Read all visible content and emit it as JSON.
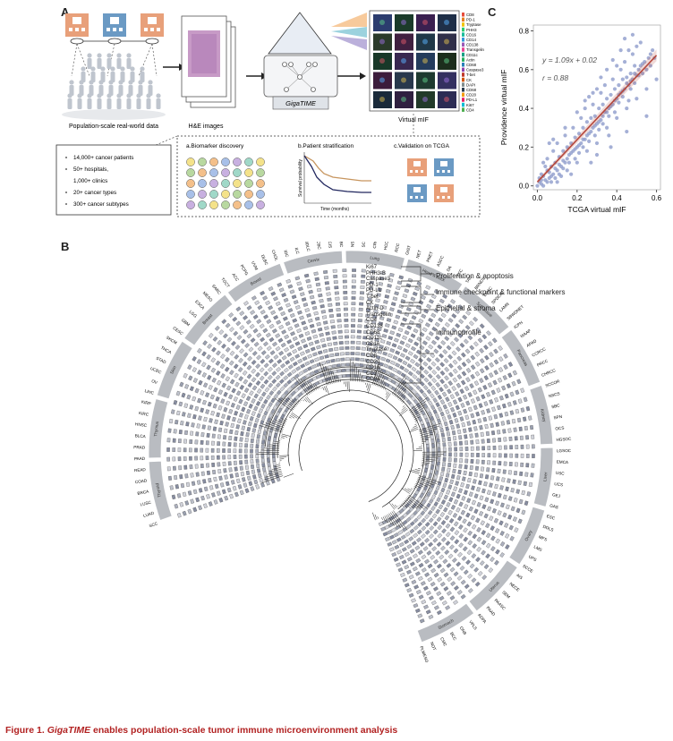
{
  "panels": {
    "a": "A",
    "b": "B",
    "c": "C"
  },
  "panel_a": {
    "population_label": "Population-scale real-world data",
    "he_label": "H&E images",
    "model_label": "GigaTIME",
    "mif_label": "Virtual mIF",
    "markers": [
      "CD8",
      "PD-1",
      "Tryptase",
      "PHH3",
      "CD16",
      "CD14",
      "CD138",
      "Transgelin",
      "CD11c",
      "Actin",
      "CD68",
      "Caspase3",
      "T-bet",
      "CK",
      "DAPI",
      "CD68",
      "CD20",
      "PD-L1",
      "Ki67",
      "CD4"
    ],
    "stats": [
      "14,000+ cancer patients",
      "50+ hospitals,",
      "1,000+ clinics",
      "20+ cancer types",
      "300+ cancer subtypes"
    ],
    "sub_a": "a.Biomarker discovery",
    "sub_b": "b.Patient stratification",
    "sub_c": "c.Validation on TCGA",
    "km_ylabel": "Survival probability",
    "km_xlabel": "Time (months)"
  },
  "panel_b": {
    "groups": [
      "Proliferation & apoptosis",
      "Immune checkpoint & functional markers",
      "Epithelial & stroma",
      "Immunoprofile"
    ],
    "markers": [
      "Ki67",
      "PHH3-B",
      "Caspase3",
      "PD-1",
      "PD-L1",
      "T-bet",
      "CK",
      "Actin-D",
      "Transgolin",
      "CD4",
      "CD138",
      "CD68",
      "CD11c",
      "CD16",
      "Tryptase",
      "CD8",
      "CD20",
      "CD16",
      "CD3",
      "CD34"
    ],
    "tissue_segments": [
      "Thyroid",
      "Thymus",
      "Skin",
      "Breast",
      "Bowel",
      "Cervix",
      "Lung",
      "Head & neck",
      "Soft tissue",
      "Pancreas",
      "Kidney",
      "Liver",
      "Ovary",
      "Uterus",
      "Stomach"
    ],
    "subtypes": [
      "SCC",
      "LUAD",
      "LUSC",
      "BRCA",
      "COAD",
      "READ",
      "PAAD",
      "PRAD",
      "BLCA",
      "HNSC",
      "KIRC",
      "KIRP",
      "LIHC",
      "OV",
      "UCEC",
      "STAD",
      "THCA",
      "SKCM",
      "CESC",
      "GBM",
      "LGG",
      "ESCA",
      "MESO",
      "SARC",
      "TGCT",
      "ACC",
      "PCPG",
      "UVM",
      "DLBC",
      "CHOL",
      "IDC",
      "ILC",
      "MDLC",
      "ACBC",
      "LCIS",
      "MBC",
      "NSCLC",
      "SCLC",
      "CRC",
      "HCC",
      "RCC",
      "GIST",
      "NET",
      "PNET",
      "ASCC",
      "DA",
      "SKC",
      "TAC",
      "BRNDS",
      "EHAC",
      "SPDCR",
      "LAMN",
      "SBWDNET",
      "ICPN",
      "MAAP",
      "APAD",
      "CCRCC",
      "PRCC",
      "CHRCC",
      "SCCOR",
      "NSCS",
      "SBC",
      "SPN",
      "OCS",
      "HGSOC",
      "LGSOC",
      "EMCA",
      "USC",
      "UCS",
      "GEJ",
      "GAS",
      "ESC",
      "DDLS",
      "MFS",
      "LMS",
      "UPS",
      "SCCE",
      "AIS",
      "NECE",
      "SEM",
      "PAASC",
      "PAAD",
      "ADPA",
      "VPLS",
      "ONB",
      "BCC",
      "CMC",
      "NOT",
      "PLMESO"
    ]
  },
  "chart_data": {
    "type": "scatter",
    "xlabel": "TCGA virtual mIF",
    "ylabel": "Providence virtual mIF",
    "xlim": [
      -0.02,
      0.62
    ],
    "ylim": [
      -0.02,
      0.83
    ],
    "xticks": [
      0.0,
      0.2,
      0.4,
      0.6
    ],
    "yticks": [
      0.0,
      0.2,
      0.4,
      0.6,
      0.8
    ],
    "annotation_eq": "y = 1.09x + 0.02",
    "annotation_r": "r = 0.88",
    "fit": {
      "slope": 1.09,
      "intercept": 0.02
    },
    "point_color": "#8f9ccc",
    "line_color": "#b5483c",
    "points": [
      [
        0.01,
        0.02
      ],
      [
        0.02,
        0.01
      ],
      [
        0.03,
        0.05
      ],
      [
        0.04,
        0.03
      ],
      [
        0.05,
        0.08
      ],
      [
        0.06,
        0.04
      ],
      [
        0.07,
        0.1
      ],
      [
        0.08,
        0.06
      ],
      [
        0.09,
        0.12
      ],
      [
        0.1,
        0.08
      ],
      [
        0.11,
        0.15
      ],
      [
        0.12,
        0.1
      ],
      [
        0.13,
        0.18
      ],
      [
        0.14,
        0.12
      ],
      [
        0.15,
        0.2
      ],
      [
        0.16,
        0.16
      ],
      [
        0.17,
        0.22
      ],
      [
        0.18,
        0.18
      ],
      [
        0.19,
        0.25
      ],
      [
        0.2,
        0.2
      ],
      [
        0.21,
        0.27
      ],
      [
        0.22,
        0.22
      ],
      [
        0.23,
        0.3
      ],
      [
        0.24,
        0.24
      ],
      [
        0.25,
        0.33
      ],
      [
        0.26,
        0.27
      ],
      [
        0.27,
        0.35
      ],
      [
        0.28,
        0.3
      ],
      [
        0.29,
        0.36
      ],
      [
        0.3,
        0.32
      ],
      [
        0.31,
        0.4
      ],
      [
        0.32,
        0.34
      ],
      [
        0.33,
        0.42
      ],
      [
        0.34,
        0.38
      ],
      [
        0.35,
        0.45
      ],
      [
        0.36,
        0.4
      ],
      [
        0.37,
        0.47
      ],
      [
        0.38,
        0.42
      ],
      [
        0.39,
        0.5
      ],
      [
        0.4,
        0.45
      ],
      [
        0.41,
        0.52
      ],
      [
        0.42,
        0.48
      ],
      [
        0.43,
        0.55
      ],
      [
        0.44,
        0.5
      ],
      [
        0.45,
        0.56
      ],
      [
        0.46,
        0.52
      ],
      [
        0.47,
        0.58
      ],
      [
        0.48,
        0.55
      ],
      [
        0.49,
        0.62
      ],
      [
        0.5,
        0.57
      ],
      [
        0.52,
        0.62
      ],
      [
        0.54,
        0.64
      ],
      [
        0.56,
        0.66
      ],
      [
        0.58,
        0.7
      ],
      [
        0.05,
        0.14
      ],
      [
        0.08,
        0.18
      ],
      [
        0.1,
        0.22
      ],
      [
        0.12,
        0.05
      ],
      [
        0.15,
        0.08
      ],
      [
        0.18,
        0.3
      ],
      [
        0.2,
        0.12
      ],
      [
        0.22,
        0.35
      ],
      [
        0.25,
        0.18
      ],
      [
        0.28,
        0.42
      ],
      [
        0.3,
        0.22
      ],
      [
        0.32,
        0.48
      ],
      [
        0.35,
        0.3
      ],
      [
        0.38,
        0.55
      ],
      [
        0.4,
        0.35
      ],
      [
        0.42,
        0.6
      ],
      [
        0.45,
        0.4
      ],
      [
        0.48,
        0.68
      ],
      [
        0.5,
        0.45
      ],
      [
        0.52,
        0.74
      ],
      [
        0.55,
        0.5
      ],
      [
        0.06,
        0.22
      ],
      [
        0.14,
        0.26
      ],
      [
        0.24,
        0.4
      ],
      [
        0.34,
        0.52
      ],
      [
        0.44,
        0.64
      ],
      [
        0.3,
        0.16
      ],
      [
        0.36,
        0.26
      ],
      [
        0.46,
        0.44
      ],
      [
        0.6,
        0.55
      ],
      [
        0.02,
        0.06
      ],
      [
        0.04,
        0.1
      ],
      [
        0.07,
        0.02
      ],
      [
        0.09,
        0.04
      ],
      [
        0.11,
        0.06
      ],
      [
        0.13,
        0.09
      ],
      [
        0.16,
        0.12
      ],
      [
        0.19,
        0.14
      ],
      [
        0.21,
        0.17
      ],
      [
        0.23,
        0.2
      ],
      [
        0.26,
        0.23
      ],
      [
        0.29,
        0.26
      ],
      [
        0.31,
        0.29
      ],
      [
        0.33,
        0.32
      ],
      [
        0.36,
        0.36
      ],
      [
        0.39,
        0.38
      ],
      [
        0.41,
        0.43
      ],
      [
        0.43,
        0.46
      ],
      [
        0.47,
        0.5
      ],
      [
        0.49,
        0.53
      ],
      [
        0.51,
        0.6
      ],
      [
        0.53,
        0.58
      ],
      [
        0.57,
        0.62
      ],
      [
        0.59,
        0.66
      ],
      [
        0.03,
        0.12
      ],
      [
        0.1,
        0.02
      ],
      [
        0.17,
        0.06
      ],
      [
        0.27,
        0.12
      ],
      [
        0.37,
        0.2
      ],
      [
        0.45,
        0.28
      ],
      [
        0.55,
        0.36
      ],
      [
        0.5,
        0.72
      ],
      [
        0.46,
        0.7
      ],
      [
        0.4,
        0.62
      ],
      [
        0.32,
        0.56
      ],
      [
        0.26,
        0.46
      ],
      [
        0.2,
        0.38
      ],
      [
        0.14,
        0.3
      ],
      [
        0.08,
        0.24
      ],
      [
        0.0,
        0.0
      ],
      [
        0.01,
        0.04
      ],
      [
        0.02,
        0.03
      ],
      [
        0.03,
        0.0
      ],
      [
        0.05,
        0.02
      ],
      [
        0.06,
        0.07
      ],
      [
        0.07,
        0.05
      ],
      [
        0.09,
        0.09
      ],
      [
        0.11,
        0.11
      ],
      [
        0.13,
        0.13
      ],
      [
        0.15,
        0.14
      ],
      [
        0.17,
        0.17
      ],
      [
        0.19,
        0.19
      ],
      [
        0.21,
        0.21
      ],
      [
        0.23,
        0.24
      ],
      [
        0.25,
        0.26
      ],
      [
        0.27,
        0.28
      ],
      [
        0.29,
        0.31
      ],
      [
        0.31,
        0.33
      ],
      [
        0.33,
        0.36
      ],
      [
        0.35,
        0.38
      ],
      [
        0.37,
        0.41
      ],
      [
        0.39,
        0.44
      ],
      [
        0.41,
        0.47
      ],
      [
        0.43,
        0.49
      ],
      [
        0.45,
        0.53
      ],
      [
        0.47,
        0.54
      ],
      [
        0.49,
        0.58
      ],
      [
        0.51,
        0.57
      ],
      [
        0.53,
        0.63
      ],
      [
        0.55,
        0.6
      ],
      [
        0.57,
        0.68
      ],
      [
        0.35,
        0.6
      ],
      [
        0.38,
        0.65
      ],
      [
        0.42,
        0.7
      ],
      [
        0.44,
        0.76
      ],
      [
        0.48,
        0.78
      ],
      [
        0.3,
        0.5
      ],
      [
        0.28,
        0.48
      ],
      [
        0.24,
        0.44
      ]
    ]
  },
  "caption": {
    "prefix": "Figure 1. ",
    "italic": "GigaTIME",
    "rest": " enables population-scale tumor immune microenvironment analysis"
  }
}
